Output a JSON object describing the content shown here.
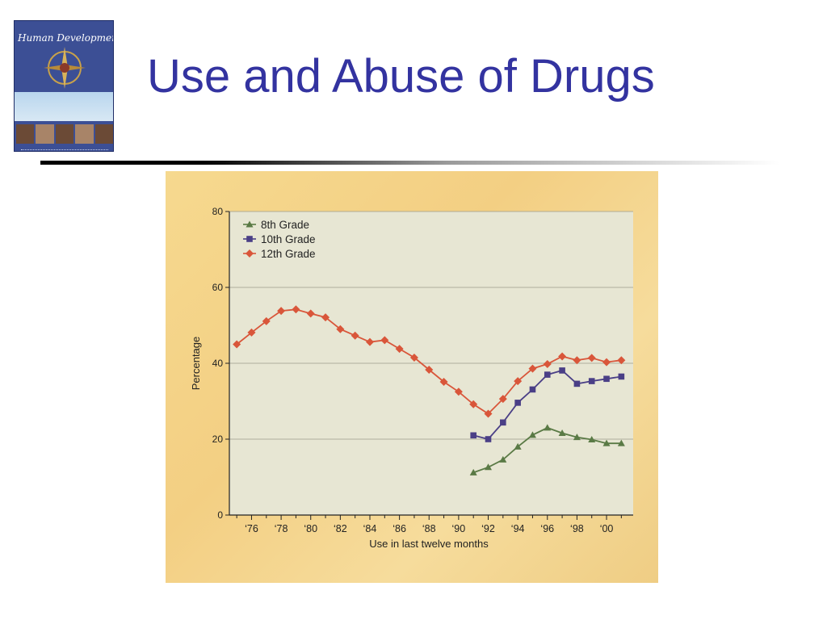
{
  "slide": {
    "title": "Use and Abuse of Drugs"
  },
  "book_cover": {
    "title": "Human Development"
  },
  "chart_data": {
    "type": "line",
    "xlabel": "Use in last twelve months",
    "ylabel": "Percentage",
    "xlim": [
      1974.5,
      2001.8
    ],
    "ylim": [
      0,
      80
    ],
    "yticks": [
      0,
      20,
      40,
      60,
      80
    ],
    "xticks": [
      {
        "value": 1976,
        "label": "‘76"
      },
      {
        "value": 1978,
        "label": "‘78"
      },
      {
        "value": 1980,
        "label": "‘80"
      },
      {
        "value": 1982,
        "label": "‘82"
      },
      {
        "value": 1984,
        "label": "‘84"
      },
      {
        "value": 1986,
        "label": "‘86"
      },
      {
        "value": 1988,
        "label": "‘88"
      },
      {
        "value": 1990,
        "label": "‘90"
      },
      {
        "value": 1992,
        "label": "‘92"
      },
      {
        "value": 1994,
        "label": "‘94"
      },
      {
        "value": 1996,
        "label": "‘96"
      },
      {
        "value": 1998,
        "label": "‘98"
      },
      {
        "value": 2000,
        "label": "‘00"
      }
    ],
    "grid": "horizontal",
    "legend": "top-left",
    "series": [
      {
        "name": "8th Grade",
        "marker": "triangle",
        "color": "#5a7a45",
        "x": [
          1991,
          1992,
          1993,
          1994,
          1995,
          1996,
          1997,
          1998,
          1999,
          2000,
          2001
        ],
        "y": [
          11.2,
          12.6,
          14.6,
          18.0,
          21.1,
          23.0,
          21.6,
          20.5,
          19.9,
          18.9,
          18.9
        ]
      },
      {
        "name": "10th Grade",
        "marker": "square",
        "color": "#4a3f86",
        "x": [
          1991,
          1992,
          1993,
          1994,
          1995,
          1996,
          1997,
          1998,
          1999,
          2000,
          2001
        ],
        "y": [
          21.0,
          20.0,
          24.4,
          29.6,
          33.1,
          37.0,
          38.1,
          34.6,
          35.3,
          35.9,
          36.5
        ]
      },
      {
        "name": "12th Grade",
        "marker": "diamond",
        "color": "#d9563a",
        "x": [
          1975,
          1976,
          1977,
          1978,
          1979,
          1980,
          1981,
          1982,
          1983,
          1984,
          1985,
          1986,
          1987,
          1988,
          1989,
          1990,
          1991,
          1992,
          1993,
          1994,
          1995,
          1996,
          1997,
          1998,
          1999,
          2000,
          2001
        ],
        "y": [
          45.0,
          48.1,
          51.1,
          53.8,
          54.2,
          53.1,
          52.1,
          49.0,
          47.3,
          45.6,
          46.1,
          43.8,
          41.5,
          38.3,
          35.1,
          32.5,
          29.2,
          26.7,
          30.6,
          35.3,
          38.6,
          39.8,
          41.8,
          40.8,
          41.4,
          40.3,
          40.8
        ]
      }
    ]
  }
}
